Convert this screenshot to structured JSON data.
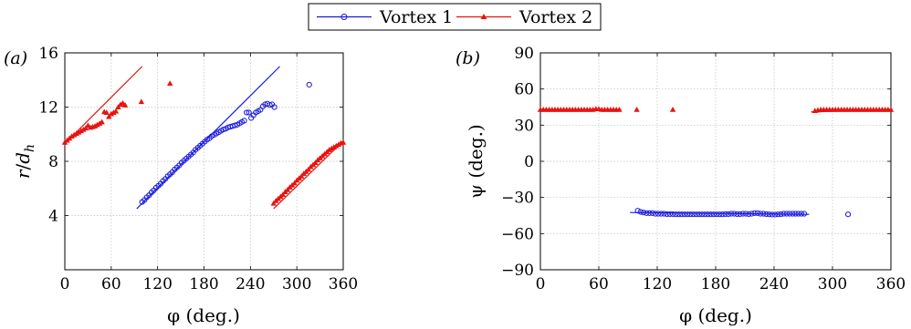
{
  "figure": {
    "legend": {
      "entries": [
        {
          "name": "Vortex 1",
          "color": "#1a1adb",
          "marker": "circle"
        },
        {
          "name": "Vortex 2",
          "color": "#e8130f",
          "marker": "triangle"
        }
      ]
    }
  },
  "chart_data": [
    {
      "type": "scatter",
      "panel_label": "(a)",
      "xlabel": "φ (deg.)",
      "ylabel": "r/d_h",
      "ylabel_main": "r",
      "ylabel_sep": "/",
      "ylabel_base": "d",
      "ylabel_sub": "h",
      "xlim": [
        0,
        360
      ],
      "ylim": [
        0,
        16
      ],
      "xticks": [
        0,
        60,
        120,
        180,
        240,
        300,
        360
      ],
      "yticks": [
        4,
        8,
        12,
        16
      ],
      "grid": true,
      "series": [
        {
          "name": "Vortex 1",
          "color": "#1a1adb",
          "marker": "circle",
          "points": [
            [
              100,
              5.0
            ],
            [
              103,
              5.15
            ],
            [
              106,
              5.35
            ],
            [
              109,
              5.5
            ],
            [
              112,
              5.7
            ],
            [
              115,
              5.85
            ],
            [
              118,
              6.05
            ],
            [
              121,
              6.2
            ],
            [
              124,
              6.35
            ],
            [
              127,
              6.55
            ],
            [
              130,
              6.7
            ],
            [
              133,
              6.9
            ],
            [
              136,
              7.05
            ],
            [
              139,
              7.2
            ],
            [
              142,
              7.4
            ],
            [
              145,
              7.55
            ],
            [
              148,
              7.7
            ],
            [
              151,
              7.9
            ],
            [
              154,
              8.05
            ],
            [
              157,
              8.2
            ],
            [
              160,
              8.35
            ],
            [
              163,
              8.5
            ],
            [
              166,
              8.65
            ],
            [
              169,
              8.85
            ],
            [
              172,
              9.0
            ],
            [
              175,
              9.15
            ],
            [
              178,
              9.3
            ],
            [
              181,
              9.45
            ],
            [
              184,
              9.6
            ],
            [
              187,
              9.7
            ],
            [
              190,
              9.85
            ],
            [
              193,
              9.95
            ],
            [
              196,
              10.05
            ],
            [
              199,
              10.15
            ],
            [
              202,
              10.25
            ],
            [
              205,
              10.35
            ],
            [
              208,
              10.4
            ],
            [
              211,
              10.5
            ],
            [
              214,
              10.55
            ],
            [
              217,
              10.6
            ],
            [
              220,
              10.65
            ],
            [
              223,
              10.7
            ],
            [
              226,
              10.8
            ],
            [
              229,
              10.9
            ],
            [
              232,
              11.0
            ],
            [
              235,
              11.6
            ],
            [
              238,
              11.6
            ],
            [
              241,
              11.2
            ],
            [
              244,
              11.4
            ],
            [
              247,
              11.6
            ],
            [
              250,
              11.7
            ],
            [
              253,
              11.8
            ],
            [
              256,
              12.05
            ],
            [
              259,
              12.2
            ],
            [
              262,
              12.25
            ],
            [
              265,
              12.15
            ],
            [
              268,
              12.2
            ],
            [
              271,
              12.0
            ],
            [
              316,
              13.65
            ]
          ],
          "fit_line": [
            [
              93,
              4.5
            ],
            [
              278,
              15.0
            ]
          ]
        },
        {
          "name": "Vortex 2",
          "color": "#e8130f",
          "marker": "triangle",
          "points": [
            [
              0,
              9.4
            ],
            [
              3,
              9.55
            ],
            [
              6,
              9.7
            ],
            [
              9,
              9.85
            ],
            [
              12,
              9.95
            ],
            [
              15,
              10.05
            ],
            [
              18,
              10.15
            ],
            [
              21,
              10.25
            ],
            [
              24,
              10.35
            ],
            [
              27,
              10.45
            ],
            [
              30,
              10.65
            ],
            [
              33,
              10.5
            ],
            [
              36,
              10.55
            ],
            [
              39,
              10.6
            ],
            [
              42,
              10.7
            ],
            [
              45,
              10.8
            ],
            [
              48,
              10.9
            ],
            [
              51,
              11.65
            ],
            [
              54,
              11.6
            ],
            [
              57,
              11.3
            ],
            [
              60,
              11.5
            ],
            [
              63,
              11.6
            ],
            [
              66,
              11.7
            ],
            [
              69,
              12.0
            ],
            [
              72,
              12.2
            ],
            [
              75,
              12.3
            ],
            [
              78,
              12.15
            ],
            [
              99,
              12.4
            ],
            [
              136,
              13.75
            ],
            [
              270,
              4.9
            ],
            [
              273,
              5.1
            ],
            [
              276,
              5.25
            ],
            [
              279,
              5.4
            ],
            [
              282,
              5.55
            ],
            [
              285,
              5.75
            ],
            [
              288,
              5.9
            ],
            [
              291,
              6.1
            ],
            [
              294,
              6.25
            ],
            [
              297,
              6.4
            ],
            [
              300,
              6.6
            ],
            [
              303,
              6.75
            ],
            [
              306,
              6.9
            ],
            [
              309,
              7.1
            ],
            [
              312,
              7.25
            ],
            [
              315,
              7.4
            ],
            [
              318,
              7.6
            ],
            [
              321,
              7.75
            ],
            [
              324,
              7.9
            ],
            [
              327,
              8.1
            ],
            [
              330,
              8.25
            ],
            [
              333,
              8.4
            ],
            [
              336,
              8.55
            ],
            [
              339,
              8.7
            ],
            [
              342,
              8.85
            ],
            [
              345,
              8.95
            ],
            [
              348,
              9.05
            ],
            [
              351,
              9.15
            ],
            [
              354,
              9.25
            ],
            [
              357,
              9.35
            ],
            [
              360,
              9.4
            ]
          ],
          "fit_lines": [
            [
              [
                0,
                9.3
              ],
              [
                100,
                15.0
              ]
            ],
            [
              [
                270,
                4.5
              ],
              [
                360,
                9.5
              ]
            ]
          ]
        }
      ]
    },
    {
      "type": "scatter",
      "panel_label": "(b)",
      "xlabel": "φ (deg.)",
      "ylabel": "ψ (deg.)",
      "xlim": [
        0,
        360
      ],
      "ylim": [
        -90,
        90
      ],
      "xticks": [
        0,
        60,
        120,
        180,
        240,
        300,
        360
      ],
      "yticks": [
        -90,
        -60,
        -30,
        0,
        30,
        60,
        90
      ],
      "grid": true,
      "series": [
        {
          "name": "Vortex 1",
          "color": "#1a1adb",
          "marker": "circle",
          "points": [
            [
              100,
              -41
            ],
            [
              103,
              -42
            ],
            [
              106,
              -42.5
            ],
            [
              109,
              -43
            ],
            [
              112,
              -43
            ],
            [
              115,
              -43
            ],
            [
              118,
              -43.5
            ],
            [
              121,
              -43.5
            ],
            [
              124,
              -43.5
            ],
            [
              127,
              -43.5
            ],
            [
              130,
              -43.8
            ],
            [
              133,
              -43.8
            ],
            [
              136,
              -43.8
            ],
            [
              139,
              -44
            ],
            [
              142,
              -44
            ],
            [
              145,
              -44
            ],
            [
              148,
              -44
            ],
            [
              151,
              -44
            ],
            [
              154,
              -44
            ],
            [
              157,
              -44
            ],
            [
              160,
              -44
            ],
            [
              163,
              -44
            ],
            [
              166,
              -44
            ],
            [
              169,
              -44
            ],
            [
              172,
              -44
            ],
            [
              175,
              -44
            ],
            [
              178,
              -44
            ],
            [
              181,
              -44
            ],
            [
              184,
              -44
            ],
            [
              187,
              -44
            ],
            [
              190,
              -43.8
            ],
            [
              193,
              -43.8
            ],
            [
              196,
              -43.5
            ],
            [
              199,
              -43.5
            ],
            [
              202,
              -43.8
            ],
            [
              205,
              -43.8
            ],
            [
              208,
              -43.5
            ],
            [
              211,
              -43.5
            ],
            [
              214,
              -43.8
            ],
            [
              217,
              -43.5
            ],
            [
              220,
              -43
            ],
            [
              223,
              -43
            ],
            [
              226,
              -43.5
            ],
            [
              229,
              -43.5
            ],
            [
              232,
              -43.8
            ],
            [
              235,
              -44
            ],
            [
              238,
              -44.2
            ],
            [
              241,
              -44.2
            ],
            [
              244,
              -44
            ],
            [
              247,
              -43.8
            ],
            [
              250,
              -43.5
            ],
            [
              253,
              -43.5
            ],
            [
              256,
              -43.5
            ],
            [
              259,
              -43.5
            ],
            [
              262,
              -43.5
            ],
            [
              265,
              -43.5
            ],
            [
              268,
              -43.5
            ],
            [
              271,
              -43.5
            ],
            [
              316,
              -44
            ]
          ],
          "fit_lines": [
            [
              [
                92,
                -42.5
              ],
              [
                276,
                -44
              ]
            ]
          ]
        },
        {
          "name": "Vortex 2",
          "color": "#e8130f",
          "marker": "triangle",
          "points": [
            [
              0,
              43
            ],
            [
              3,
              43
            ],
            [
              6,
              43
            ],
            [
              9,
              43
            ],
            [
              12,
              43
            ],
            [
              15,
              43
            ],
            [
              18,
              43
            ],
            [
              21,
              43
            ],
            [
              24,
              43
            ],
            [
              27,
              43
            ],
            [
              30,
              43
            ],
            [
              33,
              43
            ],
            [
              36,
              43
            ],
            [
              39,
              43
            ],
            [
              42,
              43
            ],
            [
              45,
              43
            ],
            [
              48,
              43
            ],
            [
              51,
              43
            ],
            [
              54,
              43
            ],
            [
              57,
              43.5
            ],
            [
              60,
              43.5
            ],
            [
              63,
              43
            ],
            [
              66,
              43
            ],
            [
              69,
              43
            ],
            [
              72,
              43
            ],
            [
              75,
              43
            ],
            [
              78,
              43
            ],
            [
              81,
              43
            ],
            [
              99,
              43
            ],
            [
              136,
              43
            ],
            [
              282,
              42
            ],
            [
              285,
              42.5
            ],
            [
              288,
              43
            ],
            [
              291,
              43
            ],
            [
              294,
              43
            ],
            [
              297,
              43
            ],
            [
              300,
              43
            ],
            [
              303,
              43
            ],
            [
              306,
              43
            ],
            [
              309,
              43
            ],
            [
              312,
              43
            ],
            [
              315,
              43
            ],
            [
              318,
              43
            ],
            [
              321,
              43
            ],
            [
              324,
              43
            ],
            [
              327,
              43
            ],
            [
              330,
              43
            ],
            [
              333,
              43
            ],
            [
              336,
              43
            ],
            [
              339,
              43
            ],
            [
              342,
              43
            ],
            [
              345,
              43
            ],
            [
              348,
              43
            ],
            [
              351,
              43
            ],
            [
              354,
              43
            ],
            [
              357,
              43
            ],
            [
              360,
              43
            ]
          ],
          "fit_lines": [
            [
              [
                0,
                43
              ],
              [
                83,
                43
              ]
            ],
            [
              [
                278,
                41
              ],
              [
                360,
                43
              ]
            ]
          ]
        }
      ]
    }
  ]
}
